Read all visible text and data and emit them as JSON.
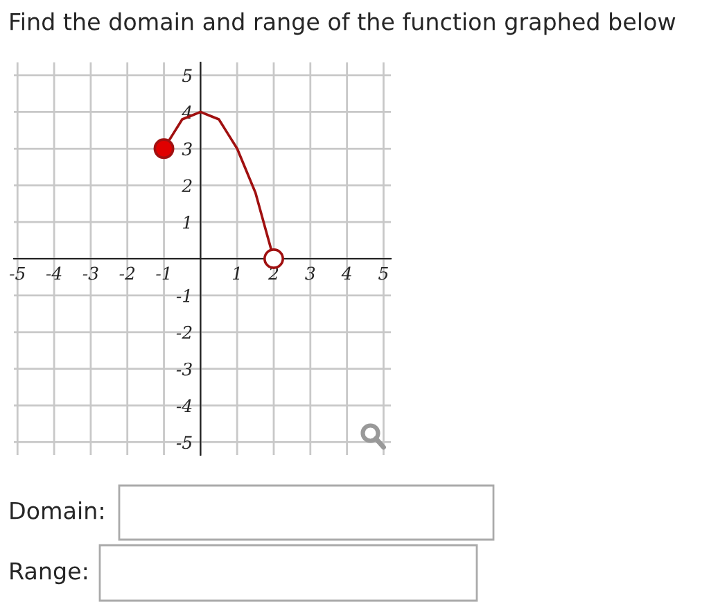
{
  "chart_data": {
    "type": "line",
    "title": "Find the domain and range of the function graphed below",
    "series": [
      {
        "color": "#a01010",
        "marker": "none",
        "x": [
          -1,
          -0.75,
          -0.5,
          -0.25,
          0,
          0.25,
          0.5,
          0.75,
          1,
          1.25,
          1.5,
          1.75,
          2
        ],
        "values": [
          3,
          3.4,
          3.8,
          3.9,
          4,
          3.9,
          3.8,
          3.4,
          3,
          2.4,
          1.8,
          0.9,
          0
        ]
      },
      {
        "type": "scatter",
        "color": "#e00000",
        "marker": "circle",
        "x": [
          -1
        ],
        "values": [
          3
        ]
      },
      {
        "type": "scatter",
        "color": "#ffffff",
        "marker": "circle",
        "x": [
          2
        ],
        "values": [
          0
        ]
      }
    ],
    "xlim": [
      -5.1,
      5.2
    ],
    "ylim": [
      -5.35,
      5.35
    ],
    "xticks": [
      -5,
      -4,
      -3,
      -2,
      -1,
      1,
      2,
      3,
      4,
      5
    ],
    "yticks": [
      -5,
      -4,
      -3,
      -2,
      -1,
      1,
      2,
      3,
      4,
      5
    ],
    "grid": true,
    "annotations": [
      "Domain:",
      "Range:"
    ]
  }
}
